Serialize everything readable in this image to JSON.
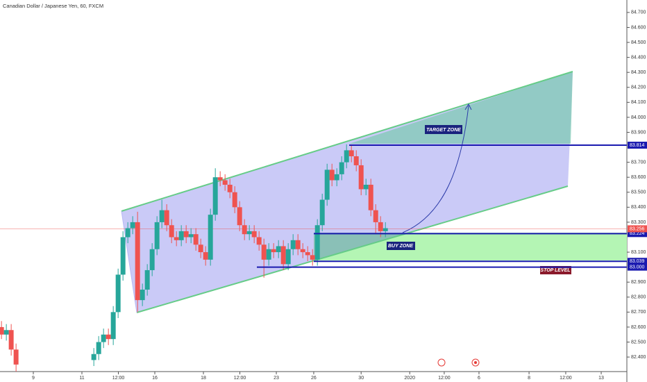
{
  "chart_data": {
    "type": "candlestick",
    "title": "Canadian Dollar / Japanese Yen, 60, FXCM",
    "xlim": [
      -1.371,
      24.34
    ],
    "ylim": [
      82.303,
      84.783
    ],
    "xticks": [
      {
        "value": 0,
        "label": "9"
      },
      {
        "value": 2,
        "label": "11"
      },
      {
        "value": 3.5,
        "label": "12:00"
      },
      {
        "value": 5,
        "label": "16"
      },
      {
        "value": 7,
        "label": "18"
      },
      {
        "value": 8.5,
        "label": "12:00"
      },
      {
        "value": 10,
        "label": "23"
      },
      {
        "value": 11.54,
        "label": "26"
      },
      {
        "value": 13.49,
        "label": "30"
      },
      {
        "value": 15.49,
        "label": "2020"
      },
      {
        "value": 16.91,
        "label": "12:00"
      },
      {
        "value": 18.34,
        "label": "6"
      },
      {
        "value": 20.4,
        "label": "8"
      },
      {
        "value": 21.91,
        "label": "12:00"
      },
      {
        "value": 23.37,
        "label": "13"
      }
    ],
    "yticks": [
      {
        "value": 84.7,
        "label": "84.700"
      },
      {
        "value": 84.6,
        "label": "84.600"
      },
      {
        "value": 84.5,
        "label": "84.500"
      },
      {
        "value": 84.4,
        "label": "84.400"
      },
      {
        "value": 84.3,
        "label": "84.300"
      },
      {
        "value": 84.2,
        "label": "84.200"
      },
      {
        "value": 84.1,
        "label": "84.100"
      },
      {
        "value": 84,
        "label": "84.000"
      },
      {
        "value": 83.9,
        "label": "83.900"
      },
      {
        "value": 83.7,
        "label": "83.700"
      },
      {
        "value": 83.6,
        "label": "83.600"
      },
      {
        "value": 83.5,
        "label": "83.500"
      },
      {
        "value": 83.4,
        "label": "83.400"
      },
      {
        "value": 83.3,
        "label": "83.300"
      },
      {
        "value": 83.1,
        "label": "83.100"
      },
      {
        "value": 82.9,
        "label": "82.900"
      },
      {
        "value": 82.8,
        "label": "82.800"
      },
      {
        "value": 82.7,
        "label": "82.700"
      },
      {
        "value": 82.6,
        "label": "82.600"
      },
      {
        "value": 82.5,
        "label": "82.500"
      },
      {
        "value": 82.4,
        "label": "82.400"
      }
    ],
    "up_color": "#26a69a",
    "down_color": "#ef5350",
    "x": [
      -1.31,
      -1.11,
      -0.91,
      -0.71,
      2.49,
      2.69,
      2.89,
      3.09,
      3.29,
      3.49,
      3.69,
      3.89,
      4.09,
      4.29,
      4.49,
      4.69,
      4.89,
      5.09,
      5.29,
      5.49,
      5.69,
      5.89,
      6.09,
      6.29,
      6.49,
      6.69,
      6.89,
      7.09,
      7.29,
      7.49,
      7.69,
      7.89,
      8.09,
      8.29,
      8.49,
      8.69,
      8.89,
      9.09,
      9.29,
      9.49,
      9.69,
      9.89,
      10.09,
      10.29,
      10.49,
      10.69,
      10.89,
      11.09,
      11.29,
      11.49,
      11.69,
      11.89,
      12.09,
      12.29,
      12.49,
      12.69,
      12.89,
      13.09,
      13.29,
      13.49,
      13.69,
      13.89,
      14.09,
      14.29,
      14.49
    ],
    "open": [
      82.6,
      82.55,
      82.58,
      82.45,
      82.38,
      82.42,
      82.5,
      82.55,
      82.52,
      82.7,
      82.95,
      83.2,
      83.26,
      83.3,
      82.78,
      82.85,
      82.98,
      83.12,
      83.3,
      83.38,
      83.28,
      83.2,
      83.18,
      83.24,
      83.2,
      83.22,
      83.15,
      83.1,
      83.05,
      83.35,
      83.6,
      83.58,
      83.55,
      83.5,
      83.4,
      83.28,
      83.22,
      83.24,
      83.2,
      83.15,
      83.05,
      83.12,
      83.1,
      83.14,
      83.02,
      83.12,
      83.18,
      83.12,
      83.1,
      83.08,
      83.05,
      83.28,
      83.45,
      83.65,
      83.58,
      83.62,
      83.7,
      83.78,
      83.74,
      83.68,
      83.52,
      83.55,
      83.38,
      83.3,
      83.24
    ],
    "high": [
      82.64,
      82.62,
      82.62,
      82.49,
      82.46,
      82.54,
      82.59,
      82.59,
      82.74,
      82.99,
      83.24,
      83.3,
      83.34,
      83.37,
      82.89,
      83.02,
      83.16,
      83.34,
      83.45,
      83.42,
      83.32,
      83.24,
      83.28,
      83.28,
      83.26,
      83.26,
      83.19,
      83.14,
      83.39,
      83.66,
      83.64,
      83.62,
      83.59,
      83.54,
      83.44,
      83.32,
      83.28,
      83.28,
      83.24,
      83.19,
      83.16,
      83.16,
      83.18,
      83.18,
      83.16,
      83.22,
      83.22,
      83.16,
      83.14,
      83.12,
      83.32,
      83.49,
      83.69,
      83.69,
      83.66,
      83.74,
      83.82,
      83.81,
      83.78,
      83.72,
      83.59,
      83.59,
      83.42,
      83.34,
      83.3
    ],
    "low": [
      82.52,
      82.51,
      82.41,
      82.3,
      82.34,
      82.38,
      82.46,
      82.48,
      82.48,
      82.66,
      82.91,
      83.16,
      83.22,
      82.7,
      82.74,
      82.81,
      82.94,
      83.08,
      83.26,
      83.24,
      83.16,
      83.14,
      83.14,
      83.16,
      83.16,
      83.11,
      83.06,
      83.01,
      83.01,
      83.31,
      83.54,
      83.51,
      83.46,
      83.36,
      83.24,
      83.18,
      83.18,
      83.16,
      83.11,
      82.93,
      83.01,
      83.06,
      83.06,
      82.98,
      82.98,
      83.08,
      83.08,
      83.06,
      83.04,
      83.01,
      83.01,
      83.24,
      83.41,
      83.54,
      83.54,
      83.58,
      83.66,
      83.7,
      83.64,
      83.48,
      83.48,
      83.34,
      83.22,
      83.2,
      83.2
    ],
    "close": [
      82.55,
      82.58,
      82.45,
      82.35,
      82.42,
      82.5,
      82.55,
      82.52,
      82.7,
      82.95,
      83.2,
      83.26,
      83.3,
      82.78,
      82.85,
      82.98,
      83.12,
      83.3,
      83.38,
      83.28,
      83.2,
      83.18,
      83.24,
      83.2,
      83.22,
      83.15,
      83.1,
      83.05,
      83.35,
      83.6,
      83.58,
      83.55,
      83.5,
      83.4,
      83.28,
      83.22,
      83.24,
      83.2,
      83.15,
      83.05,
      83.12,
      83.1,
      83.14,
      83.02,
      83.12,
      83.18,
      83.12,
      83.1,
      83.08,
      83.05,
      83.28,
      83.45,
      83.65,
      83.58,
      83.62,
      83.7,
      83.78,
      83.74,
      83.68,
      83.52,
      83.55,
      83.38,
      83.3,
      83.24,
      83.26
    ],
    "price_levels": [
      83.814,
      83.224,
      83.039,
      {
        "value": 83,
        "label": "83.000"
      }
    ],
    "last_price": 83.256,
    "annotations": {
      "target": "TARGET ZONE",
      "buy": "BUY ZONE",
      "stop": "STOP LEVEL"
    }
  }
}
